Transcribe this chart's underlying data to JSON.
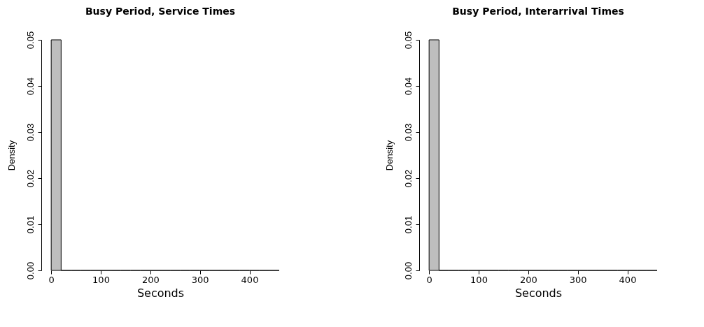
{
  "chart_data": [
    {
      "type": "histogram",
      "title": "Busy Period, Service Times",
      "xlabel": "Seconds",
      "ylabel": "Density",
      "color": "#bebebe",
      "bins": [
        0,
        20,
        40,
        60,
        80,
        100,
        120,
        140,
        160,
        180,
        200,
        220,
        240,
        260,
        280,
        300,
        320,
        340,
        360,
        380,
        400,
        420,
        440,
        460
      ],
      "values": [
        0.05,
        0,
        0,
        0,
        0,
        0,
        0,
        0,
        0,
        0,
        0,
        0,
        0,
        0,
        0,
        0,
        0,
        0,
        0,
        0,
        0,
        0,
        0
      ],
      "xlim": [
        -20,
        460
      ],
      "ylim": [
        0,
        0.05
      ],
      "xticks": [
        0,
        100,
        200,
        300,
        400
      ],
      "yticks": [
        {
          "value": 0,
          "label": "0.00"
        },
        {
          "value": 0.01,
          "label": "0.01"
        },
        {
          "value": 0.02,
          "label": "0.02"
        },
        {
          "value": 0.03,
          "label": "0.03"
        },
        {
          "value": 0.04,
          "label": "0.04"
        },
        {
          "value": 0.05,
          "label": "0.05"
        }
      ],
      "grid": false
    },
    {
      "type": "histogram",
      "title": "Busy Period, Interarrival Times",
      "xlabel": "Seconds",
      "ylabel": "Density",
      "color": "#bebebe",
      "bins": [
        0,
        20,
        40,
        60,
        80,
        100,
        120,
        140,
        160,
        180,
        200,
        220,
        240,
        260,
        280,
        300,
        320,
        340,
        360,
        380,
        400,
        420,
        440,
        460
      ],
      "values": [
        0.05,
        0,
        0,
        0,
        0,
        0,
        0,
        0,
        0,
        0,
        0,
        0,
        0,
        0,
        0,
        0,
        0,
        0,
        0,
        0,
        0,
        0,
        0
      ],
      "xlim": [
        -20,
        460
      ],
      "ylim": [
        0,
        0.05
      ],
      "xticks": [
        0,
        100,
        200,
        300,
        400
      ],
      "yticks": [
        {
          "value": 0,
          "label": "0.00"
        },
        {
          "value": 0.01,
          "label": "0.01"
        },
        {
          "value": 0.02,
          "label": "0.02"
        },
        {
          "value": 0.03,
          "label": "0.03"
        },
        {
          "value": 0.04,
          "label": "0.04"
        },
        {
          "value": 0.05,
          "label": "0.05"
        }
      ],
      "grid": false
    }
  ]
}
